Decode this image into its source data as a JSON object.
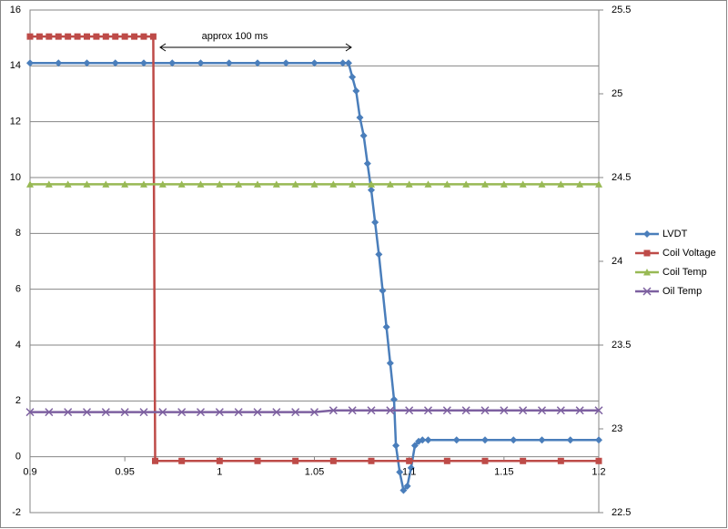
{
  "chart_data": {
    "type": "line",
    "annotation": "approx 100 ms",
    "xlim": [
      0.9,
      1.2
    ],
    "xticks": [
      0.9,
      0.95,
      1,
      1.05,
      1.1,
      1.15,
      1.2
    ],
    "ylim": [
      -2,
      16
    ],
    "yticks": [
      -2,
      0,
      2,
      4,
      6,
      8,
      10,
      12,
      14,
      16
    ],
    "y2lim": [
      22.5,
      25.5
    ],
    "y2ticks": [
      22.5,
      23,
      23.5,
      24,
      24.5,
      25,
      25.5
    ],
    "grid": true,
    "legend": "right",
    "series": [
      {
        "name": "LVDT",
        "color": "#4a7ebb",
        "marker": "diamond",
        "x": [
          0.9,
          0.915,
          0.93,
          0.945,
          0.96,
          0.975,
          0.99,
          1.005,
          1.02,
          1.035,
          1.05,
          1.065,
          1.068,
          1.07,
          1.072,
          1.074,
          1.076,
          1.078,
          1.08,
          1.082,
          1.084,
          1.086,
          1.088,
          1.09,
          1.092,
          1.093,
          1.095,
          1.097,
          1.099,
          1.101,
          1.103,
          1.105,
          1.107,
          1.11,
          1.125,
          1.14,
          1.155,
          1.17,
          1.185,
          1.2
        ],
        "values": [
          14.1,
          14.1,
          14.1,
          14.1,
          14.1,
          14.1,
          14.1,
          14.1,
          14.1,
          14.1,
          14.1,
          14.1,
          14.1,
          13.6,
          13.1,
          12.15,
          11.5,
          10.5,
          9.55,
          8.4,
          7.25,
          5.95,
          4.65,
          3.35,
          2.05,
          0.4,
          -0.55,
          -1.2,
          -1.05,
          -0.4,
          0.4,
          0.55,
          0.6,
          0.6,
          0.6,
          0.6,
          0.6,
          0.6,
          0.6,
          0.6
        ]
      },
      {
        "name": "Coil Voltage",
        "color": "#be4b48",
        "marker": "square",
        "x": [
          0.9,
          0.905,
          0.91,
          0.915,
          0.92,
          0.925,
          0.93,
          0.935,
          0.94,
          0.945,
          0.95,
          0.955,
          0.96,
          0.965,
          0.966,
          0.98,
          1.0,
          1.02,
          1.04,
          1.06,
          1.08,
          1.1,
          1.12,
          1.14,
          1.16,
          1.18,
          1.2
        ],
        "values": [
          15.05,
          15.05,
          15.05,
          15.05,
          15.05,
          15.05,
          15.05,
          15.05,
          15.05,
          15.05,
          15.05,
          15.05,
          15.05,
          15.05,
          -0.15,
          -0.15,
          -0.15,
          -0.15,
          -0.15,
          -0.15,
          -0.15,
          -0.15,
          -0.15,
          -0.15,
          -0.15,
          -0.15,
          -0.15
        ]
      },
      {
        "name": "Coil Temp",
        "color": "#98b954",
        "marker": "triangle",
        "axis": "y2",
        "x": [
          0.9,
          0.91,
          0.92,
          0.93,
          0.94,
          0.95,
          0.96,
          0.97,
          0.98,
          0.99,
          1.0,
          1.01,
          1.02,
          1.03,
          1.04,
          1.05,
          1.06,
          1.07,
          1.08,
          1.09,
          1.1,
          1.11,
          1.12,
          1.13,
          1.14,
          1.15,
          1.16,
          1.17,
          1.18,
          1.19,
          1.2
        ],
        "values": [
          24.46,
          24.46,
          24.46,
          24.46,
          24.46,
          24.46,
          24.46,
          24.46,
          24.46,
          24.46,
          24.46,
          24.46,
          24.46,
          24.46,
          24.46,
          24.46,
          24.46,
          24.46,
          24.46,
          24.46,
          24.46,
          24.46,
          24.46,
          24.46,
          24.46,
          24.46,
          24.46,
          24.46,
          24.46,
          24.46,
          24.46
        ]
      },
      {
        "name": "Oil Temp",
        "color": "#7d60a0",
        "marker": "x",
        "axis": "y2",
        "x": [
          0.9,
          0.91,
          0.92,
          0.93,
          0.94,
          0.95,
          0.96,
          0.97,
          0.98,
          0.99,
          1.0,
          1.01,
          1.02,
          1.03,
          1.04,
          1.05,
          1.06,
          1.07,
          1.08,
          1.09,
          1.1,
          1.11,
          1.12,
          1.13,
          1.14,
          1.15,
          1.16,
          1.17,
          1.18,
          1.19,
          1.2
        ],
        "values": [
          23.1,
          23.1,
          23.1,
          23.1,
          23.1,
          23.1,
          23.1,
          23.1,
          23.1,
          23.1,
          23.1,
          23.1,
          23.1,
          23.1,
          23.1,
          23.1,
          23.11,
          23.11,
          23.11,
          23.11,
          23.11,
          23.11,
          23.11,
          23.11,
          23.11,
          23.11,
          23.11,
          23.11,
          23.11,
          23.11,
          23.11
        ]
      }
    ]
  }
}
